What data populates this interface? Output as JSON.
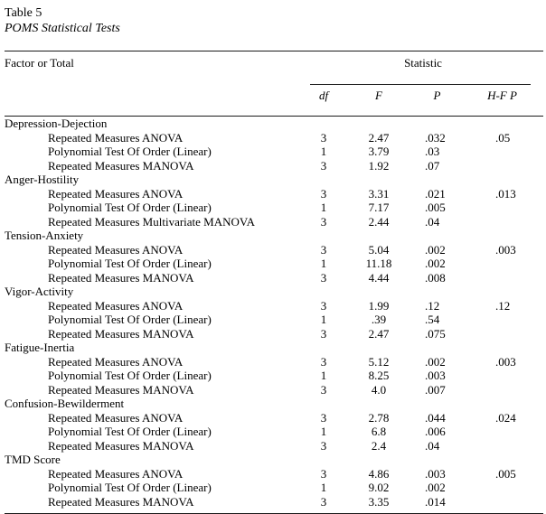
{
  "page": {
    "background": "#ffffff",
    "text_color": "#000000",
    "rule_color": "#1a1a1a"
  },
  "title": {
    "label": "Table 5",
    "subtitle": "POMS Statistical Tests"
  },
  "table": {
    "row_header": "Factor or Total",
    "stat_header": "Statistic",
    "columns": [
      "df",
      "F",
      "P",
      "H-F P"
    ],
    "groups": [
      {
        "factor": "Depression-Dejection",
        "tests": [
          {
            "name": "Repeated Measures ANOVA",
            "df": "3",
            "F": "2.47",
            "P": ".032",
            "HFP": ".05"
          },
          {
            "name": "Polynomial Test Of Order (Linear)",
            "df": "1",
            "F": "3.79",
            "P": ".03",
            "HFP": ""
          },
          {
            "name": "Repeated Measures MANOVA",
            "df": "3",
            "F": "1.92",
            "P": ".07",
            "HFP": ""
          }
        ]
      },
      {
        "factor": "Anger-Hostility",
        "tests": [
          {
            "name": "Repeated Measures ANOVA",
            "df": "3",
            "F": "3.31",
            "P": ".021",
            "HFP": ".013"
          },
          {
            "name": "Polynomial Test Of Order (Linear)",
            "df": "1",
            "F": "7.17",
            "P": ".005",
            "HFP": ""
          },
          {
            "name": "Repeated Measures Multivariate MANOVA",
            "df": "3",
            "F": "2.44",
            "P": ".04",
            "HFP": ""
          }
        ]
      },
      {
        "factor": "Tension-Anxiety",
        "tests": [
          {
            "name": "Repeated Measures ANOVA",
            "df": "3",
            "F": "5.04",
            "P": ".002",
            "HFP": ".003"
          },
          {
            "name": "Polynomial Test Of Order (Linear)",
            "df": "1",
            "F": "11.18",
            "P": ".002",
            "HFP": ""
          },
          {
            "name": "Repeated Measures MANOVA",
            "df": "3",
            "F": "4.44",
            "P": ".008",
            "HFP": ""
          }
        ]
      },
      {
        "factor": "Vigor-Activity",
        "tests": [
          {
            "name": "Repeated Measures ANOVA",
            "df": "3",
            "F": "1.99",
            "P": ".12",
            "HFP": ".12"
          },
          {
            "name": "Polynomial Test Of Order (Linear)",
            "df": "1",
            "F": ".39",
            "P": ".54",
            "HFP": ""
          },
          {
            "name": "Repeated Measures MANOVA",
            "df": "3",
            "F": "2.47",
            "P": ".075",
            "HFP": ""
          }
        ]
      },
      {
        "factor": "Fatigue-Inertia",
        "tests": [
          {
            "name": "Repeated Measures ANOVA",
            "df": "3",
            "F": "5.12",
            "P": ".002",
            "HFP": ".003"
          },
          {
            "name": "Polynomial Test Of Order (Linear)",
            "df": "1",
            "F": "8.25",
            "P": ".003",
            "HFP": ""
          },
          {
            "name": "Repeated Measures MANOVA",
            "df": "3",
            "F": "4.0",
            "P": ".007",
            "HFP": ""
          }
        ]
      },
      {
        "factor": "Confusion-Bewilderment",
        "tests": [
          {
            "name": "Repeated Measures ANOVA",
            "df": "3",
            "F": "2.78",
            "P": ".044",
            "HFP": ".024"
          },
          {
            "name": "Polynomial Test Of Order (Linear)",
            "df": "1",
            "F": "6.8",
            "P": ".006",
            "HFP": ""
          },
          {
            "name": "Repeated Measures MANOVA",
            "df": "3",
            "F": "2.4",
            "P": ".04",
            "HFP": ""
          }
        ]
      },
      {
        "factor": "TMD Score",
        "tests": [
          {
            "name": "Repeated Measures ANOVA",
            "df": "3",
            "F": "4.86",
            "P": ".003",
            "HFP": ".005"
          },
          {
            "name": "Polynomial Test Of Order (Linear)",
            "df": "1",
            "F": "9.02",
            "P": ".002",
            "HFP": ""
          },
          {
            "name": "Repeated Measures MANOVA",
            "df": "3",
            "F": "3.35",
            "P": ".014",
            "HFP": ""
          }
        ]
      }
    ]
  }
}
